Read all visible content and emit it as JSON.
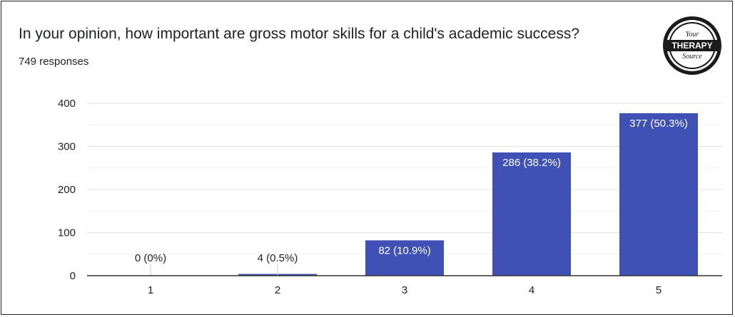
{
  "title": "In your opinion, how important are gross motor skills for a child's academic success?",
  "response_count": "749 responses",
  "logo": {
    "line1": "Your",
    "line2": "THERAPY",
    "line3": "Source"
  },
  "colors": {
    "bar": "#3f51b5",
    "grid": "#e0e0e0",
    "axis": "#333333",
    "text": "#202124"
  },
  "chart_data": {
    "type": "bar",
    "categories": [
      "1",
      "2",
      "3",
      "4",
      "5"
    ],
    "values": [
      0,
      4,
      82,
      286,
      377
    ],
    "data_labels": [
      "0 (0%)",
      "4 (0.5%)",
      "82 (10.9%)",
      "286 (38.2%)",
      "377 (50.3%)"
    ],
    "ylim": [
      0,
      400
    ],
    "yticks": [
      0,
      100,
      200,
      300,
      400
    ],
    "grid": true
  }
}
